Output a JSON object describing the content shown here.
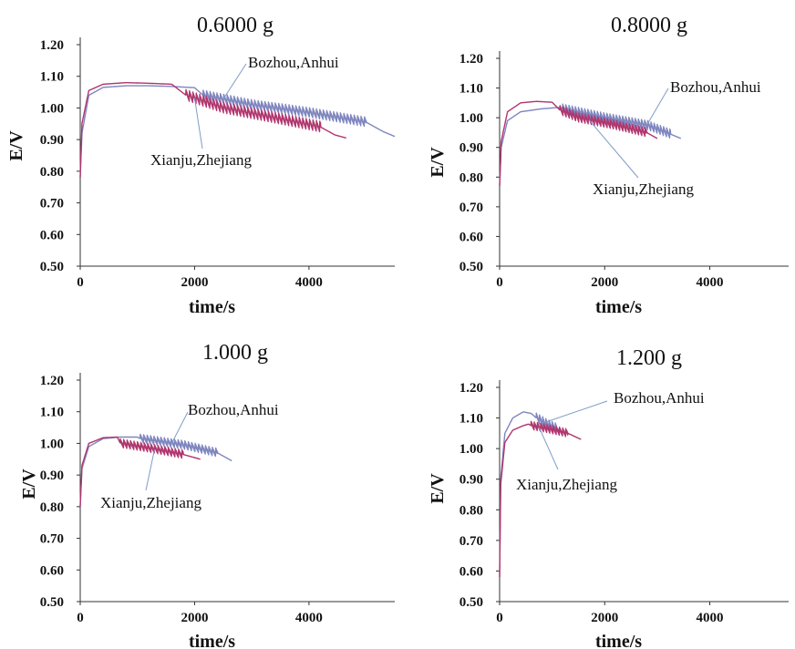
{
  "colors": {
    "Bozhou,Anhui": "#7f86bf",
    "Xianju,Zhejiang": "#b0366e",
    "axis": "#333333",
    "leader": "#7f9cc8"
  },
  "chart_data": [
    {
      "type": "line",
      "title": "0.6000 g",
      "xlabel": "time/s",
      "ylabel": "E/V",
      "ylim": [
        0.5,
        1.2
      ],
      "xlim": [
        0,
        5500
      ],
      "xticks": [
        0,
        2000,
        4000
      ],
      "yticks": [
        "0.50",
        "0.60",
        "0.70",
        "0.80",
        "0.90",
        "1.00",
        "1.10",
        "1.20"
      ],
      "grid": false,
      "annotations": [
        {
          "text": "Bozhou,Anhui",
          "series": "Bozhou,Anhui"
        },
        {
          "text": "Xianju,Zhejiang",
          "series": "Xianju,Zhejiang"
        }
      ],
      "series": [
        {
          "name": "Bozhou,Anhui",
          "x": [
            0,
            30,
            150,
            400,
            800,
            1200,
            1600,
            2000,
            2150,
            3000,
            4000,
            5000,
            5300,
            5500
          ],
          "y": [
            0.78,
            0.92,
            1.04,
            1.065,
            1.07,
            1.07,
            1.068,
            1.064,
            1.04,
            1.01,
            0.985,
            0.955,
            0.925,
            0.91
          ],
          "osc_start": 2150,
          "osc_end": 5000,
          "osc_amp": 0.012
        },
        {
          "name": "Xianju,Zhejiang",
          "x": [
            0,
            30,
            150,
            400,
            800,
            1200,
            1600,
            1850,
            2500,
            3500,
            4200,
            4450,
            4650
          ],
          "y": [
            0.78,
            0.95,
            1.055,
            1.075,
            1.08,
            1.078,
            1.075,
            1.04,
            1.0,
            0.965,
            0.94,
            0.915,
            0.905
          ],
          "osc_start": 1850,
          "osc_end": 4200,
          "osc_amp": 0.014
        }
      ]
    },
    {
      "type": "line",
      "title": "0.8000 g",
      "xlabel": "time/s",
      "ylabel": "E/V",
      "ylim": [
        0.5,
        1.2
      ],
      "xlim": [
        0,
        5500
      ],
      "xticks": [
        0,
        2000,
        4000
      ],
      "yticks": [
        "0.50",
        "0.60",
        "0.70",
        "0.80",
        "0.90",
        "1.00",
        "1.10",
        "1.20"
      ],
      "grid": false,
      "annotations": [
        {
          "text": "Bozhou,Anhui",
          "series": "Bozhou,Anhui"
        },
        {
          "text": "Xianju,Zhejiang",
          "series": "Xianju,Zhejiang"
        }
      ],
      "series": [
        {
          "name": "Bozhou,Anhui",
          "x": [
            0,
            30,
            150,
            400,
            800,
            1150,
            1200,
            2000,
            2800,
            3250,
            3450
          ],
          "y": [
            0.77,
            0.9,
            0.99,
            1.02,
            1.03,
            1.035,
            1.03,
            1.0,
            0.975,
            0.945,
            0.93
          ],
          "osc_start": 1200,
          "osc_end": 3250,
          "osc_amp": 0.012
        },
        {
          "name": "Xianju,Zhejiang",
          "x": [
            0,
            30,
            150,
            400,
            700,
            1000,
            1150,
            1500,
            2200,
            2800,
            3000
          ],
          "y": [
            0.77,
            0.92,
            1.02,
            1.05,
            1.055,
            1.052,
            1.025,
            1.0,
            0.975,
            0.95,
            0.93
          ],
          "osc_start": 1150,
          "osc_end": 2800,
          "osc_amp": 0.012
        }
      ]
    },
    {
      "type": "line",
      "title": "1.000  g",
      "xlabel": "time/s",
      "ylabel": "E/V",
      "ylim": [
        0.5,
        1.2
      ],
      "xlim": [
        0,
        5500
      ],
      "xticks": [
        0,
        2000,
        4000
      ],
      "yticks": [
        "0.50",
        "0.60",
        "0.70",
        "0.80",
        "0.90",
        "1.00",
        "1.10",
        "1.20"
      ],
      "grid": false,
      "annotations": [
        {
          "text": "Bozhou,Anhui",
          "series": "Bozhou,Anhui"
        },
        {
          "text": "Xianju,Zhejiang",
          "series": "Xianju,Zhejiang"
        }
      ],
      "series": [
        {
          "name": "Bozhou,Anhui",
          "x": [
            0,
            30,
            150,
            400,
            700,
            1000,
            1050,
            1800,
            2400,
            2650
          ],
          "y": [
            0.8,
            0.92,
            0.99,
            1.015,
            1.02,
            1.02,
            1.015,
            0.995,
            0.97,
            0.945
          ],
          "osc_start": 1050,
          "osc_end": 2400,
          "osc_amp": 0.01
        },
        {
          "name": "Xianju,Zhejiang",
          "x": [
            0,
            30,
            150,
            400,
            650,
            700,
            1200,
            1800,
            2100
          ],
          "y": [
            0.8,
            0.93,
            1.0,
            1.018,
            1.02,
            1.0,
            0.985,
            0.965,
            0.95
          ],
          "osc_start": 700,
          "osc_end": 1800,
          "osc_amp": 0.01
        }
      ]
    },
    {
      "type": "line",
      "title": "1.200  g",
      "xlabel": "time/s",
      "ylabel": "E/V",
      "ylim": [
        0.5,
        1.2
      ],
      "xlim": [
        0,
        5500
      ],
      "xticks": [
        0,
        2000,
        4000
      ],
      "yticks": [
        "0.50",
        "0.60",
        "0.70",
        "0.80",
        "0.90",
        "1.00",
        "1.10",
        "1.20"
      ],
      "grid": false,
      "annotations": [
        {
          "text": "Bozhou,Anhui",
          "series": "Bozhou,Anhui"
        },
        {
          "text": "Xianju,Zhejiang",
          "series": "Xianju,Zhejiang"
        }
      ],
      "series": [
        {
          "name": "Bozhou,Anhui",
          "x": [
            0,
            20,
            100,
            250,
            450,
            600,
            700,
            900,
            1100,
            1150
          ],
          "y": [
            0.58,
            0.9,
            1.05,
            1.1,
            1.12,
            1.115,
            1.1,
            1.08,
            1.065,
            1.06
          ],
          "osc_start": 700,
          "osc_end": 1100,
          "osc_amp": 0.012
        },
        {
          "name": "Xianju,Zhejiang",
          "x": [
            0,
            20,
            100,
            250,
            450,
            550,
            600,
            900,
            1300,
            1550
          ],
          "y": [
            0.58,
            0.88,
            1.02,
            1.06,
            1.075,
            1.08,
            1.075,
            1.065,
            1.05,
            1.03
          ],
          "osc_start": 600,
          "osc_end": 1300,
          "osc_amp": 0.01
        }
      ]
    }
  ]
}
